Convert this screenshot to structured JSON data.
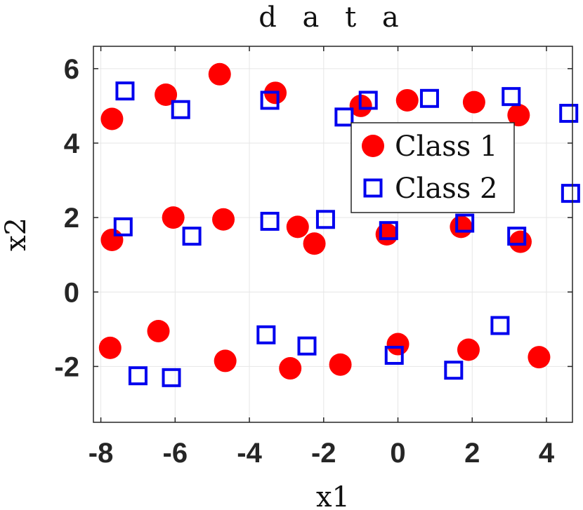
{
  "colors": {
    "class1": "#ff0000",
    "class2": "#0000ee",
    "axis": "#262626",
    "grid": "#e6e6e6"
  },
  "chart_data": {
    "type": "scatter",
    "title": "d a t a",
    "xlabel": "x1",
    "ylabel": "x2",
    "xlim": [
      -8.2,
      4.7
    ],
    "ylim": [
      -3.5,
      6.6
    ],
    "xticks": [
      -8,
      -6,
      -4,
      -2,
      0,
      2,
      4
    ],
    "yticks": [
      -2,
      0,
      2,
      4,
      6
    ],
    "xtick_labels": [
      "-8",
      "-6",
      "-4",
      "-2",
      "0",
      "2",
      "4"
    ],
    "ytick_labels": [
      "-2",
      "0",
      "2",
      "4",
      "6"
    ],
    "grid": true,
    "legend_position": "top-right",
    "series": [
      {
        "name": "Class 1",
        "marker": "filled-circle",
        "points": [
          [
            -7.7,
            4.65
          ],
          [
            -6.25,
            5.3
          ],
          [
            -4.8,
            5.85
          ],
          [
            -3.3,
            5.35
          ],
          [
            -1.0,
            5.0
          ],
          [
            0.25,
            5.15
          ],
          [
            2.05,
            5.1
          ],
          [
            3.25,
            4.75
          ],
          [
            -7.7,
            1.4
          ],
          [
            -6.05,
            2.0
          ],
          [
            -4.7,
            1.95
          ],
          [
            -2.7,
            1.75
          ],
          [
            -2.25,
            1.3
          ],
          [
            -0.3,
            1.55
          ],
          [
            1.7,
            1.75
          ],
          [
            3.3,
            1.35
          ],
          [
            -7.75,
            -1.5
          ],
          [
            -6.45,
            -1.05
          ],
          [
            -4.65,
            -1.85
          ],
          [
            -2.9,
            -2.05
          ],
          [
            -1.55,
            -1.95
          ],
          [
            0.0,
            -1.4
          ],
          [
            1.9,
            -1.55
          ],
          [
            3.8,
            -1.75
          ]
        ]
      },
      {
        "name": "Class 2",
        "marker": "open-square",
        "points": [
          [
            -7.35,
            5.4
          ],
          [
            -5.85,
            4.9
          ],
          [
            -3.45,
            5.15
          ],
          [
            -1.45,
            4.7
          ],
          [
            -0.8,
            5.15
          ],
          [
            0.85,
            5.2
          ],
          [
            3.05,
            5.25
          ],
          [
            4.6,
            4.8
          ],
          [
            4.65,
            2.65
          ],
          [
            -7.4,
            1.75
          ],
          [
            -5.55,
            1.5
          ],
          [
            -3.45,
            1.9
          ],
          [
            -1.95,
            1.95
          ],
          [
            -0.25,
            1.65
          ],
          [
            1.8,
            1.85
          ],
          [
            3.2,
            1.5
          ],
          [
            -7.0,
            -2.25
          ],
          [
            -6.1,
            -2.3
          ],
          [
            -3.55,
            -1.15
          ],
          [
            -2.45,
            -1.45
          ],
          [
            -0.1,
            -1.7
          ],
          [
            1.5,
            -2.1
          ],
          [
            2.75,
            -0.9
          ]
        ]
      }
    ]
  }
}
